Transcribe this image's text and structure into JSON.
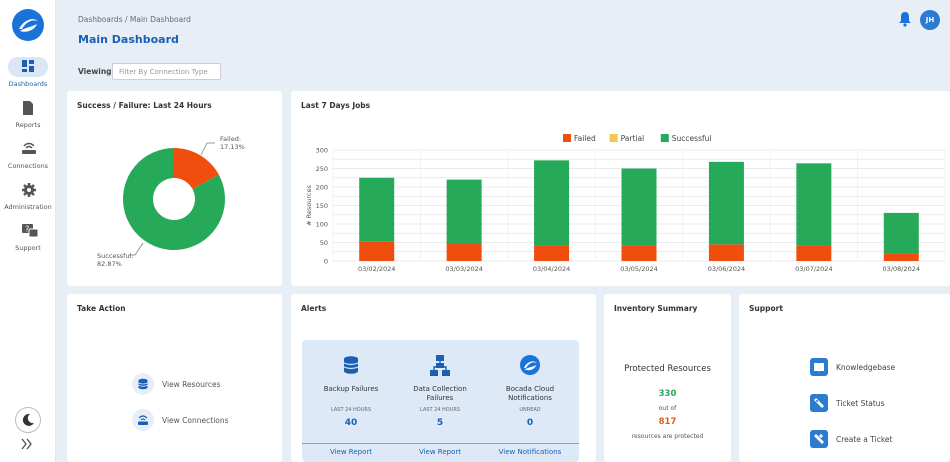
{
  "sidebar": {
    "items": [
      {
        "label": "Dashboards",
        "icon": "dashboard-icon",
        "active": true
      },
      {
        "label": "Reports",
        "icon": "document-icon"
      },
      {
        "label": "Connections",
        "icon": "router-icon"
      },
      {
        "label": "Administration",
        "icon": "gear-icon"
      },
      {
        "label": "Support",
        "icon": "help-icon"
      }
    ],
    "theme_icon": "moon-icon",
    "expand_icon": "double-chevron-right-icon"
  },
  "header": {
    "breadcrumb": "Dashboards  /  Main Dashboard",
    "title": "Main Dashboard",
    "user_initials": "JH"
  },
  "filter": {
    "label": "Viewing:",
    "placeholder": "Filter By Connection Type"
  },
  "donut_card": {
    "title": "Success / Failure: Last 24 Hours",
    "failed_label": "Failed:",
    "failed_value": "17.13%",
    "success_label": "Successful:",
    "success_value": "82.87%"
  },
  "jobs_card": {
    "title": "Last 7 Days Jobs"
  },
  "chart_data": [
    {
      "type": "pie",
      "title": "Success / Failure: Last 24 Hours",
      "labels": [
        "Failed",
        "Successful"
      ],
      "values": [
        17.13,
        82.87
      ],
      "colors": [
        "#f04e0f",
        "#27a95a"
      ]
    },
    {
      "type": "bar",
      "title": "Last 7 Days Jobs",
      "categories": [
        "03/02/2024",
        "03/03/2024",
        "03/04/2024",
        "03/05/2024",
        "03/06/2024",
        "03/07/2024",
        "03/08/2024"
      ],
      "series": [
        {
          "name": "Failed",
          "color": "#f04e0f",
          "values": [
            52,
            46,
            43,
            43,
            45,
            43,
            20
          ]
        },
        {
          "name": "Partial",
          "color": "#f2c94c",
          "values": [
            0,
            0,
            0,
            0,
            0,
            0,
            0
          ]
        },
        {
          "name": "Successful",
          "color": "#27a95a",
          "values": [
            173,
            174,
            229,
            207,
            223,
            221,
            110
          ]
        }
      ],
      "stacked": true,
      "ylabel": "# Resources",
      "ylim": [
        0,
        300
      ],
      "yticks": [
        0,
        25,
        50,
        75,
        100,
        125,
        150,
        175,
        200,
        225,
        250,
        275,
        300
      ],
      "ytick_labels": [
        "0",
        "",
        "50",
        "",
        "100",
        "",
        "150",
        "",
        "200",
        "",
        "250",
        "",
        "300"
      ],
      "legend": "top-center",
      "grid": true
    }
  ],
  "take_action": {
    "title": "Take Action",
    "items": [
      {
        "label": "View Resources",
        "icon": "database-icon"
      },
      {
        "label": "View Connections",
        "icon": "router-icon"
      }
    ]
  },
  "alerts": {
    "title": "Alerts",
    "boxes": [
      {
        "title": "Backup Failures",
        "sub": "LAST 24 HOURS",
        "count": "40",
        "link": "View Report",
        "icon": "database-icon"
      },
      {
        "title": "Data Collection Failures",
        "sub": "LAST 24 HOURS",
        "count": "5",
        "link": "View Report",
        "icon": "network-icon"
      },
      {
        "title": "Bocada Cloud Notifications",
        "sub": "UNREAD",
        "count": "0",
        "link": "View Notifications",
        "icon": "bocada-logo-icon"
      }
    ]
  },
  "inventory": {
    "title": "Inventory Summary",
    "heading": "Protected Resources",
    "protected": "330",
    "out_of": "out of",
    "total": "817",
    "caption": "resources are protected"
  },
  "support": {
    "title": "Support",
    "items": [
      {
        "label": "Knowledgebase",
        "icon": "book-icon"
      },
      {
        "label": "Ticket Status",
        "icon": "ticket-icon"
      },
      {
        "label": "Create a Ticket",
        "icon": "ticket-add-icon"
      }
    ]
  }
}
